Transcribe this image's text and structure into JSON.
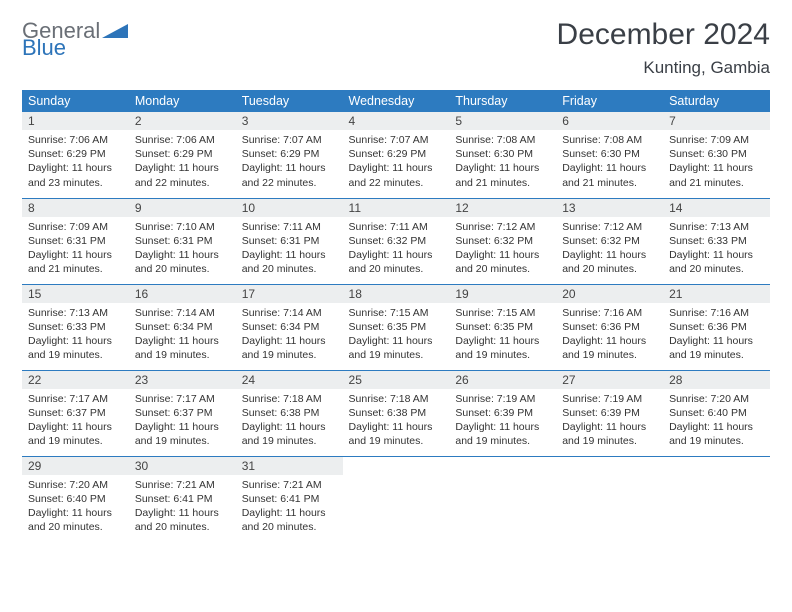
{
  "logo": {
    "line1": "General",
    "line2": "Blue"
  },
  "title": "December 2024",
  "location": "Kunting, Gambia",
  "colors": {
    "header_bg": "#2d7bc0",
    "header_text": "#ffffff",
    "daynum_bg": "#eceeef",
    "divider": "#2d7bc0",
    "logo_blue": "#2d74b9",
    "logo_gray": "#6a6f76"
  },
  "day_headers": [
    "Sunday",
    "Monday",
    "Tuesday",
    "Wednesday",
    "Thursday",
    "Friday",
    "Saturday"
  ],
  "weeks": [
    [
      {
        "n": "1",
        "sunrise": "Sunrise: 7:06 AM",
        "sunset": "Sunset: 6:29 PM",
        "daylight": "Daylight: 11 hours and 23 minutes."
      },
      {
        "n": "2",
        "sunrise": "Sunrise: 7:06 AM",
        "sunset": "Sunset: 6:29 PM",
        "daylight": "Daylight: 11 hours and 22 minutes."
      },
      {
        "n": "3",
        "sunrise": "Sunrise: 7:07 AM",
        "sunset": "Sunset: 6:29 PM",
        "daylight": "Daylight: 11 hours and 22 minutes."
      },
      {
        "n": "4",
        "sunrise": "Sunrise: 7:07 AM",
        "sunset": "Sunset: 6:29 PM",
        "daylight": "Daylight: 11 hours and 22 minutes."
      },
      {
        "n": "5",
        "sunrise": "Sunrise: 7:08 AM",
        "sunset": "Sunset: 6:30 PM",
        "daylight": "Daylight: 11 hours and 21 minutes."
      },
      {
        "n": "6",
        "sunrise": "Sunrise: 7:08 AM",
        "sunset": "Sunset: 6:30 PM",
        "daylight": "Daylight: 11 hours and 21 minutes."
      },
      {
        "n": "7",
        "sunrise": "Sunrise: 7:09 AM",
        "sunset": "Sunset: 6:30 PM",
        "daylight": "Daylight: 11 hours and 21 minutes."
      }
    ],
    [
      {
        "n": "8",
        "sunrise": "Sunrise: 7:09 AM",
        "sunset": "Sunset: 6:31 PM",
        "daylight": "Daylight: 11 hours and 21 minutes."
      },
      {
        "n": "9",
        "sunrise": "Sunrise: 7:10 AM",
        "sunset": "Sunset: 6:31 PM",
        "daylight": "Daylight: 11 hours and 20 minutes."
      },
      {
        "n": "10",
        "sunrise": "Sunrise: 7:11 AM",
        "sunset": "Sunset: 6:31 PM",
        "daylight": "Daylight: 11 hours and 20 minutes."
      },
      {
        "n": "11",
        "sunrise": "Sunrise: 7:11 AM",
        "sunset": "Sunset: 6:32 PM",
        "daylight": "Daylight: 11 hours and 20 minutes."
      },
      {
        "n": "12",
        "sunrise": "Sunrise: 7:12 AM",
        "sunset": "Sunset: 6:32 PM",
        "daylight": "Daylight: 11 hours and 20 minutes."
      },
      {
        "n": "13",
        "sunrise": "Sunrise: 7:12 AM",
        "sunset": "Sunset: 6:32 PM",
        "daylight": "Daylight: 11 hours and 20 minutes."
      },
      {
        "n": "14",
        "sunrise": "Sunrise: 7:13 AM",
        "sunset": "Sunset: 6:33 PM",
        "daylight": "Daylight: 11 hours and 20 minutes."
      }
    ],
    [
      {
        "n": "15",
        "sunrise": "Sunrise: 7:13 AM",
        "sunset": "Sunset: 6:33 PM",
        "daylight": "Daylight: 11 hours and 19 minutes."
      },
      {
        "n": "16",
        "sunrise": "Sunrise: 7:14 AM",
        "sunset": "Sunset: 6:34 PM",
        "daylight": "Daylight: 11 hours and 19 minutes."
      },
      {
        "n": "17",
        "sunrise": "Sunrise: 7:14 AM",
        "sunset": "Sunset: 6:34 PM",
        "daylight": "Daylight: 11 hours and 19 minutes."
      },
      {
        "n": "18",
        "sunrise": "Sunrise: 7:15 AM",
        "sunset": "Sunset: 6:35 PM",
        "daylight": "Daylight: 11 hours and 19 minutes."
      },
      {
        "n": "19",
        "sunrise": "Sunrise: 7:15 AM",
        "sunset": "Sunset: 6:35 PM",
        "daylight": "Daylight: 11 hours and 19 minutes."
      },
      {
        "n": "20",
        "sunrise": "Sunrise: 7:16 AM",
        "sunset": "Sunset: 6:36 PM",
        "daylight": "Daylight: 11 hours and 19 minutes."
      },
      {
        "n": "21",
        "sunrise": "Sunrise: 7:16 AM",
        "sunset": "Sunset: 6:36 PM",
        "daylight": "Daylight: 11 hours and 19 minutes."
      }
    ],
    [
      {
        "n": "22",
        "sunrise": "Sunrise: 7:17 AM",
        "sunset": "Sunset: 6:37 PM",
        "daylight": "Daylight: 11 hours and 19 minutes."
      },
      {
        "n": "23",
        "sunrise": "Sunrise: 7:17 AM",
        "sunset": "Sunset: 6:37 PM",
        "daylight": "Daylight: 11 hours and 19 minutes."
      },
      {
        "n": "24",
        "sunrise": "Sunrise: 7:18 AM",
        "sunset": "Sunset: 6:38 PM",
        "daylight": "Daylight: 11 hours and 19 minutes."
      },
      {
        "n": "25",
        "sunrise": "Sunrise: 7:18 AM",
        "sunset": "Sunset: 6:38 PM",
        "daylight": "Daylight: 11 hours and 19 minutes."
      },
      {
        "n": "26",
        "sunrise": "Sunrise: 7:19 AM",
        "sunset": "Sunset: 6:39 PM",
        "daylight": "Daylight: 11 hours and 19 minutes."
      },
      {
        "n": "27",
        "sunrise": "Sunrise: 7:19 AM",
        "sunset": "Sunset: 6:39 PM",
        "daylight": "Daylight: 11 hours and 19 minutes."
      },
      {
        "n": "28",
        "sunrise": "Sunrise: 7:20 AM",
        "sunset": "Sunset: 6:40 PM",
        "daylight": "Daylight: 11 hours and 19 minutes."
      }
    ],
    [
      {
        "n": "29",
        "sunrise": "Sunrise: 7:20 AM",
        "sunset": "Sunset: 6:40 PM",
        "daylight": "Daylight: 11 hours and 20 minutes."
      },
      {
        "n": "30",
        "sunrise": "Sunrise: 7:21 AM",
        "sunset": "Sunset: 6:41 PM",
        "daylight": "Daylight: 11 hours and 20 minutes."
      },
      {
        "n": "31",
        "sunrise": "Sunrise: 7:21 AM",
        "sunset": "Sunset: 6:41 PM",
        "daylight": "Daylight: 11 hours and 20 minutes."
      },
      null,
      null,
      null,
      null
    ]
  ]
}
